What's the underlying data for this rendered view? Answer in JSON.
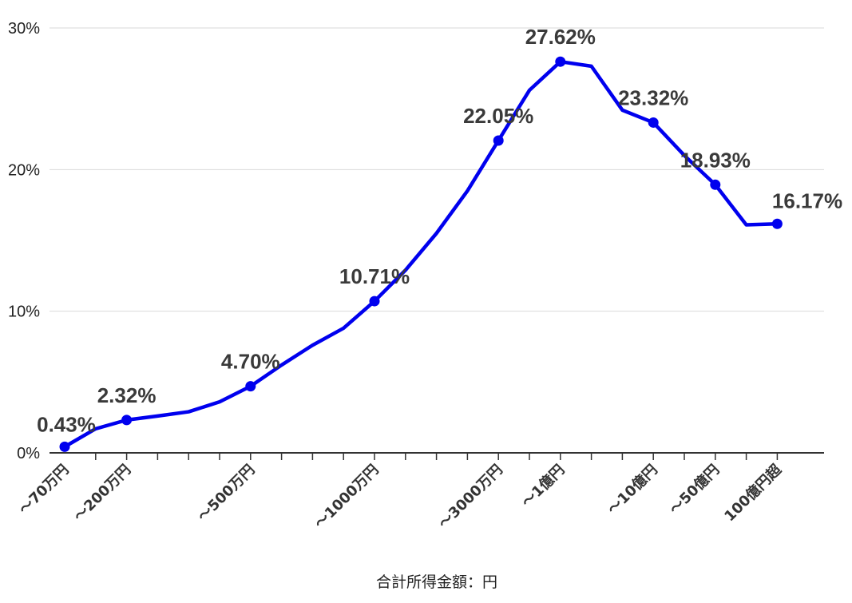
{
  "chart_data": {
    "type": "line",
    "title": "",
    "xlabel": "合計所得金額：円",
    "ylabel": "",
    "ylim": [
      0,
      30
    ],
    "y_ticks": [
      {
        "value": 0,
        "label": "0%"
      },
      {
        "value": 10,
        "label": "10%"
      },
      {
        "value": 20,
        "label": "20%"
      },
      {
        "value": 30,
        "label": "30%"
      }
    ],
    "grid": true,
    "legend": "none",
    "categories": [
      "～70万円",
      "",
      "～200万円",
      "",
      "",
      "",
      "～500万円",
      "",
      "",
      "",
      "～1000万円",
      "",
      "",
      "",
      "～3000万円",
      "",
      "～1億円",
      "",
      "",
      "～10億円",
      "",
      "～50億円",
      "",
      "100億円超"
    ],
    "series": [
      {
        "color": "#0000ee",
        "values": [
          0.43,
          1.7,
          2.32,
          2.6,
          2.9,
          3.6,
          4.7,
          6.2,
          7.6,
          8.8,
          10.71,
          12.9,
          15.5,
          18.5,
          22.05,
          25.6,
          27.62,
          27.3,
          24.2,
          23.32,
          21.0,
          18.93,
          16.1,
          16.17
        ]
      }
    ],
    "marker_indices": [
      0,
      2,
      6,
      10,
      14,
      16,
      19,
      21,
      23
    ],
    "data_labels": [
      "0.43%",
      "2.32%",
      "4.70%",
      "10.71%",
      "22.05%",
      "27.62%",
      "23.32%",
      "18.93%",
      "16.17%"
    ]
  }
}
